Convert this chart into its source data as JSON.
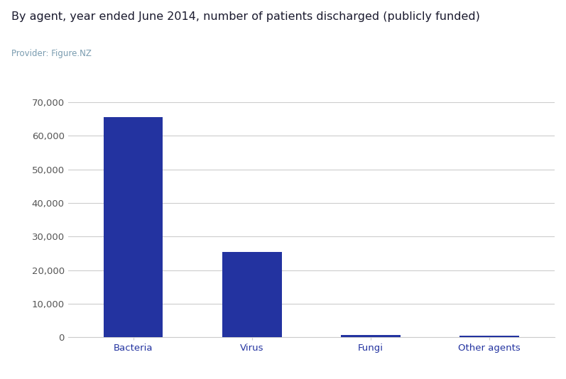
{
  "title": "By agent, year ended June 2014, number of patients discharged (publicly funded)",
  "subtitle": "Provider: Figure.NZ",
  "categories": [
    "Bacteria",
    "Virus",
    "Fungi",
    "Other agents"
  ],
  "values": [
    65500,
    25500,
    700,
    450
  ],
  "bar_color": "#2333a0",
  "ylim": [
    0,
    70000
  ],
  "yticks": [
    0,
    10000,
    20000,
    30000,
    40000,
    50000,
    60000,
    70000
  ],
  "title_fontsize": 11.5,
  "subtitle_fontsize": 8.5,
  "tick_fontsize": 9.5,
  "xlabel_fontsize": 9.5,
  "bg_color": "#ffffff",
  "grid_color": "#cccccc",
  "title_color": "#1a1a2e",
  "subtitle_color": "#7a9cb0",
  "tick_label_color": "#555555",
  "xlabel_color": "#2333a0"
}
